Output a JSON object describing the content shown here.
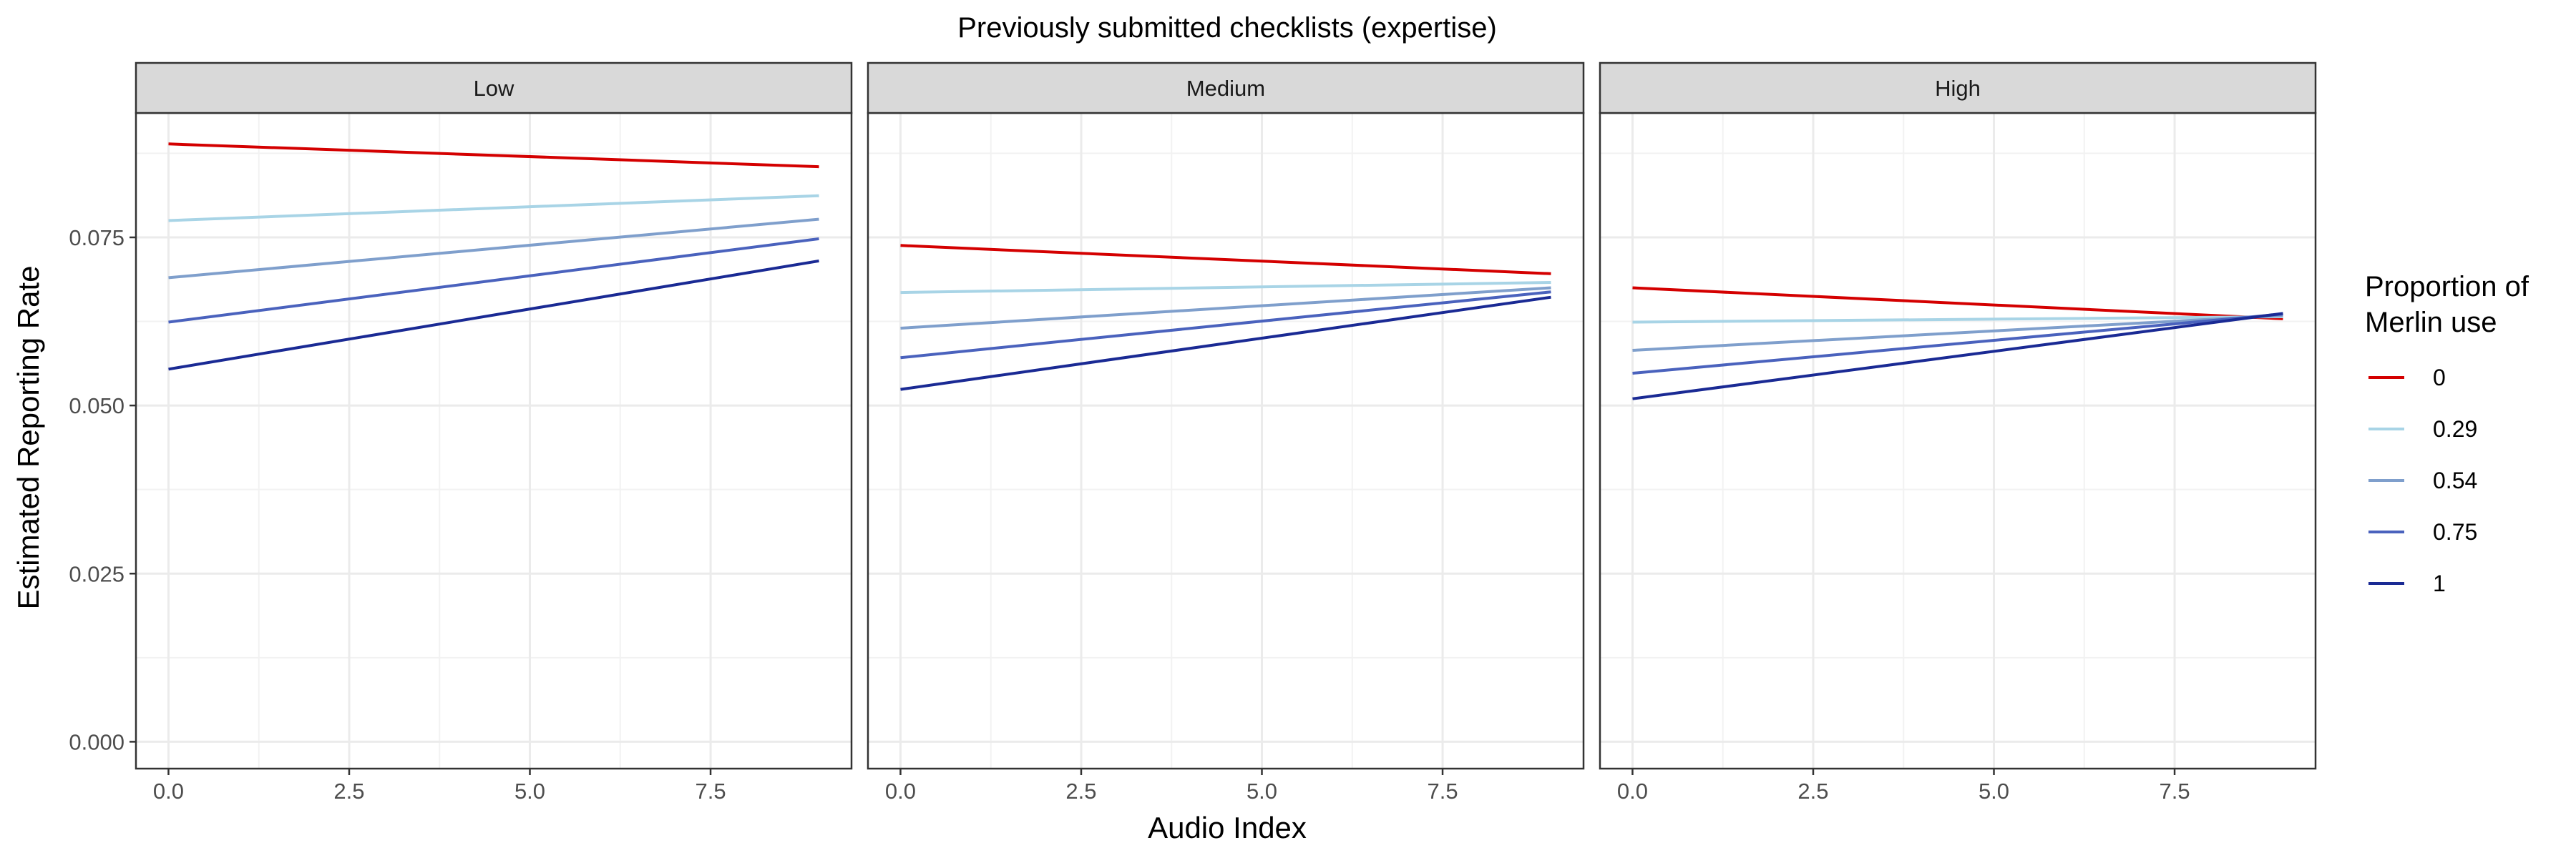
{
  "chart_data": {
    "type": "line",
    "title": "Previously submitted checklists (expertise)",
    "xlabel": "Audio Index",
    "ylabel": "Estimated Reporting Rate",
    "xlim": [
      -0.45,
      9.45
    ],
    "ylim": [
      -0.004,
      0.0935
    ],
    "x_ticks": [
      0.0,
      2.5,
      5.0,
      7.5
    ],
    "x_tick_labels": [
      "0.0",
      "2.5",
      "5.0",
      "7.5"
    ],
    "y_ticks": [
      0.0,
      0.025,
      0.05,
      0.075
    ],
    "y_tick_labels": [
      "0.000",
      "0.025",
      "0.050",
      "0.075"
    ],
    "grid": true,
    "legend": {
      "title_lines": [
        "Proportion of",
        "Merlin use"
      ],
      "position": "right"
    },
    "series_meta": [
      {
        "name": "0",
        "color": "#d40000"
      },
      {
        "name": "0.29",
        "color": "#a8d4e6"
      },
      {
        "name": "0.54",
        "color": "#7f9fcc"
      },
      {
        "name": "0.75",
        "color": "#4a62bd"
      },
      {
        "name": "1",
        "color": "#1a2a94"
      }
    ],
    "panels": [
      {
        "label": "Low",
        "x": [
          0,
          9
        ],
        "series": [
          {
            "name": "0",
            "values": [
              0.0889,
              0.0855
            ]
          },
          {
            "name": "0.29",
            "values": [
              0.0775,
              0.0812
            ]
          },
          {
            "name": "0.54",
            "values": [
              0.069,
              0.0777
            ]
          },
          {
            "name": "0.75",
            "values": [
              0.0624,
              0.0748
            ]
          },
          {
            "name": "1",
            "values": [
              0.0554,
              0.0715
            ]
          }
        ]
      },
      {
        "label": "Medium",
        "x": [
          0,
          9
        ],
        "series": [
          {
            "name": "0",
            "values": [
              0.0738,
              0.0696
            ]
          },
          {
            "name": "0.29",
            "values": [
              0.0668,
              0.0683
            ]
          },
          {
            "name": "0.54",
            "values": [
              0.0615,
              0.0675
            ]
          },
          {
            "name": "0.75",
            "values": [
              0.0571,
              0.0669
            ]
          },
          {
            "name": "1",
            "values": [
              0.0524,
              0.0661
            ]
          }
        ]
      },
      {
        "label": "High",
        "x": [
          0,
          9
        ],
        "series": [
          {
            "name": "0",
            "values": [
              0.0675,
              0.0629
            ]
          },
          {
            "name": "0.29",
            "values": [
              0.0624,
              0.0632
            ]
          },
          {
            "name": "0.54",
            "values": [
              0.0582,
              0.0634
            ]
          },
          {
            "name": "0.75",
            "values": [
              0.0548,
              0.0636
            ]
          },
          {
            "name": "1",
            "values": [
              0.051,
              0.0637
            ]
          }
        ]
      }
    ]
  }
}
